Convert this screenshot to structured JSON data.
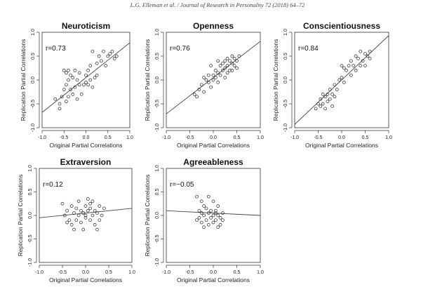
{
  "header": "L.G. Elleman et al. / Journal of Research in Personality 72 (2018) 64–72",
  "chart_data": [
    {
      "type": "scatter",
      "title": "Neuroticism",
      "xlabel": "Original Partial Correlations",
      "ylabel": "Replication Partial Correlations",
      "annotation": "r=0.73",
      "xlim": [
        -1.0,
        1.0
      ],
      "ylim": [
        -1.0,
        1.0
      ],
      "xticks": [
        "-1.0",
        "-0.5",
        "0.0",
        "0.5",
        "1.0"
      ],
      "yticks": [
        "-1.0",
        "-0.5",
        "0.0",
        "0.5",
        "1.0"
      ],
      "fit": {
        "slope": 0.73,
        "intercept": 0.05
      },
      "points": [
        [
          -0.7,
          -0.4
        ],
        [
          -0.6,
          -0.6
        ],
        [
          -0.55,
          -0.35
        ],
        [
          -0.5,
          -0.2
        ],
        [
          -0.5,
          0.2
        ],
        [
          -0.45,
          -0.1
        ],
        [
          -0.45,
          0.15
        ],
        [
          -0.4,
          -0.35
        ],
        [
          -0.4,
          0.0
        ],
        [
          -0.4,
          0.2
        ],
        [
          -0.35,
          -0.2
        ],
        [
          -0.35,
          0.1
        ],
        [
          -0.3,
          -0.3
        ],
        [
          -0.3,
          0.05
        ],
        [
          -0.25,
          -0.15
        ],
        [
          -0.25,
          0.2
        ],
        [
          -0.2,
          -0.4
        ],
        [
          -0.2,
          0.0
        ],
        [
          -0.15,
          -0.1
        ],
        [
          -0.15,
          0.15
        ],
        [
          -0.1,
          -0.3
        ],
        [
          -0.05,
          -0.1
        ],
        [
          0.0,
          -0.05
        ],
        [
          0.0,
          0.1
        ],
        [
          0.05,
          -0.1
        ],
        [
          0.05,
          0.2
        ],
        [
          0.1,
          0.0
        ],
        [
          0.1,
          0.3
        ],
        [
          0.15,
          -0.15
        ],
        [
          0.2,
          0.05
        ],
        [
          0.25,
          0.1
        ],
        [
          0.3,
          0.5
        ],
        [
          0.35,
          0.4
        ],
        [
          0.4,
          0.6
        ],
        [
          0.45,
          0.3
        ],
        [
          0.5,
          0.5
        ],
        [
          0.55,
          0.55
        ],
        [
          0.6,
          0.6
        ],
        [
          0.65,
          0.45
        ],
        [
          0.7,
          0.5
        ],
        [
          -0.6,
          -0.5
        ],
        [
          -0.45,
          -0.45
        ],
        [
          0.15,
          0.6
        ],
        [
          0.25,
          0.35
        ]
      ]
    },
    {
      "type": "scatter",
      "title": "Openness",
      "xlabel": "Original Partial Correlations",
      "ylabel": "Replication Partial Correlations",
      "annotation": "r=0.76",
      "xlim": [
        -1.0,
        1.0
      ],
      "ylim": [
        -1.0,
        1.0
      ],
      "xticks": [
        "-1.0",
        "-0.5",
        "0.0",
        "0.5",
        "1.0"
      ],
      "yticks": [
        "-1.0",
        "-0.5",
        "0.0",
        "0.5",
        "1.0"
      ],
      "fit": {
        "slope": 0.76,
        "intercept": 0.05
      },
      "points": [
        [
          -0.4,
          -0.3
        ],
        [
          -0.35,
          -0.35
        ],
        [
          -0.3,
          -0.2
        ],
        [
          -0.25,
          -0.1
        ],
        [
          -0.2,
          -0.25
        ],
        [
          -0.15,
          0.0
        ],
        [
          -0.1,
          -0.05
        ],
        [
          -0.1,
          0.1
        ],
        [
          -0.05,
          -0.15
        ],
        [
          0.0,
          0.0
        ],
        [
          0.0,
          0.1
        ],
        [
          0.05,
          0.05
        ],
        [
          0.05,
          0.2
        ],
        [
          0.1,
          -0.05
        ],
        [
          0.1,
          0.15
        ],
        [
          0.15,
          0.1
        ],
        [
          0.15,
          0.3
        ],
        [
          0.2,
          0.2
        ],
        [
          0.2,
          0.35
        ],
        [
          0.25,
          0.25
        ],
        [
          0.25,
          0.4
        ],
        [
          0.3,
          0.3
        ],
        [
          0.3,
          0.45
        ],
        [
          0.35,
          0.2
        ],
        [
          0.35,
          0.4
        ],
        [
          0.4,
          0.35
        ],
        [
          0.4,
          0.5
        ],
        [
          0.45,
          0.3
        ],
        [
          0.45,
          0.45
        ],
        [
          0.5,
          0.4
        ],
        [
          0.5,
          0.25
        ],
        [
          0.55,
          0.5
        ],
        [
          -0.2,
          0.05
        ],
        [
          -0.05,
          0.3
        ],
        [
          0.1,
          0.4
        ],
        [
          0.25,
          0.05
        ],
        [
          0.3,
          0.15
        ],
        [
          0.4,
          0.2
        ]
      ]
    },
    {
      "type": "scatter",
      "title": "Conscientiousness",
      "xlabel": "Original Partial Correlations",
      "ylabel": "Replication Partial Correlations",
      "annotation": "r=0.84",
      "xlim": [
        -1.0,
        1.0
      ],
      "ylim": [
        -1.0,
        1.0
      ],
      "xticks": [
        "-1.0",
        "-0.5",
        "0.0",
        "0.5",
        "1.0"
      ],
      "yticks": [
        "-1.0",
        "-0.5",
        "0.0",
        "0.5",
        "1.0"
      ],
      "fit": {
        "slope": 0.93,
        "intercept": 0.0
      },
      "points": [
        [
          -0.55,
          -0.6
        ],
        [
          -0.5,
          -0.5
        ],
        [
          -0.45,
          -0.55
        ],
        [
          -0.45,
          -0.4
        ],
        [
          -0.4,
          -0.5
        ],
        [
          -0.35,
          -0.35
        ],
        [
          -0.35,
          -0.6
        ],
        [
          -0.3,
          -0.45
        ],
        [
          -0.3,
          -0.3
        ],
        [
          -0.25,
          -0.4
        ],
        [
          -0.25,
          -0.2
        ],
        [
          -0.2,
          -0.3
        ],
        [
          -0.2,
          -0.55
        ],
        [
          -0.15,
          -0.1
        ],
        [
          -0.1,
          -0.2
        ],
        [
          -0.05,
          0.0
        ],
        [
          0.0,
          0.05
        ],
        [
          0.0,
          0.3
        ],
        [
          0.05,
          -0.05
        ],
        [
          0.05,
          0.25
        ],
        [
          0.1,
          0.2
        ],
        [
          0.15,
          0.3
        ],
        [
          0.2,
          0.4
        ],
        [
          0.25,
          0.3
        ],
        [
          0.3,
          0.5
        ],
        [
          0.35,
          0.45
        ],
        [
          0.4,
          0.6
        ],
        [
          0.45,
          0.4
        ],
        [
          0.5,
          0.55
        ],
        [
          0.55,
          0.5
        ],
        [
          0.6,
          0.6
        ],
        [
          0.3,
          0.2
        ],
        [
          0.4,
          0.3
        ],
        [
          0.5,
          0.3
        ],
        [
          -0.4,
          -0.3
        ],
        [
          -0.15,
          -0.35
        ],
        [
          0.2,
          0.1
        ],
        [
          0.6,
          0.45
        ]
      ]
    },
    {
      "type": "scatter",
      "title": "Extraversion",
      "xlabel": "Original Partial Correlations",
      "ylabel": "Replication Partial Correlations",
      "annotation": "r=0.12",
      "xlim": [
        -1.0,
        1.0
      ],
      "ylim": [
        -1.0,
        1.0
      ],
      "xticks": [
        "-1.0",
        "-0.5",
        "0.0",
        "0.5",
        "1.0"
      ],
      "yticks": [
        "-1.0",
        "-0.5",
        "0.0",
        "0.5",
        "1.0"
      ],
      "fit": {
        "slope": 0.1,
        "intercept": 0.05
      },
      "points": [
        [
          -0.5,
          0.25
        ],
        [
          -0.45,
          0.0
        ],
        [
          -0.4,
          0.1
        ],
        [
          -0.35,
          -0.1
        ],
        [
          -0.3,
          0.2
        ],
        [
          -0.3,
          -0.2
        ],
        [
          -0.25,
          0.05
        ],
        [
          -0.2,
          0.15
        ],
        [
          -0.2,
          -0.1
        ],
        [
          -0.15,
          0.0
        ],
        [
          -0.15,
          0.3
        ],
        [
          -0.1,
          -0.15
        ],
        [
          -0.1,
          0.1
        ],
        [
          -0.05,
          0.05
        ],
        [
          -0.05,
          -0.3
        ],
        [
          0.0,
          0.2
        ],
        [
          0.0,
          -0.05
        ],
        [
          0.05,
          0.1
        ],
        [
          0.05,
          0.35
        ],
        [
          0.1,
          -0.1
        ],
        [
          0.1,
          0.15
        ],
        [
          0.15,
          0.0
        ],
        [
          0.15,
          0.3
        ],
        [
          0.2,
          -0.2
        ],
        [
          0.2,
          0.1
        ],
        [
          0.25,
          0.05
        ],
        [
          0.3,
          0.2
        ],
        [
          0.3,
          -0.1
        ],
        [
          0.35,
          0.0
        ],
        [
          0.4,
          0.15
        ],
        [
          -0.25,
          -0.3
        ],
        [
          -0.4,
          -0.15
        ],
        [
          0.0,
          0.0
        ],
        [
          0.1,
          0.25
        ],
        [
          0.25,
          -0.3
        ]
      ]
    },
    {
      "type": "scatter",
      "title": "Agreeableness",
      "xlabel": "Original Partial Correlations",
      "ylabel": "Replication Partial Correlations",
      "annotation": "r=−0.05",
      "xlim": [
        -1.0,
        1.0
      ],
      "ylim": [
        -1.0,
        1.0
      ],
      "xticks": [
        "-1.0",
        "-0.5",
        "0.0",
        "0.5",
        "1.0"
      ],
      "yticks": [
        "-1.0",
        "-0.5",
        "0.0",
        "0.5",
        "1.0"
      ],
      "fit": {
        "slope": -0.05,
        "intercept": 0.05
      },
      "points": [
        [
          -0.35,
          0.4
        ],
        [
          -0.3,
          0.1
        ],
        [
          -0.3,
          -0.05
        ],
        [
          -0.25,
          0.3
        ],
        [
          -0.25,
          -0.15
        ],
        [
          -0.2,
          0.0
        ],
        [
          -0.2,
          0.2
        ],
        [
          -0.15,
          -0.1
        ],
        [
          -0.15,
          0.15
        ],
        [
          -0.1,
          0.05
        ],
        [
          -0.1,
          -0.2
        ],
        [
          -0.05,
          0.1
        ],
        [
          -0.05,
          -0.05
        ],
        [
          0.0,
          0.0
        ],
        [
          0.0,
          -0.15
        ],
        [
          0.05,
          0.1
        ],
        [
          0.05,
          -0.1
        ],
        [
          0.1,
          0.0
        ],
        [
          0.1,
          0.2
        ],
        [
          0.15,
          -0.05
        ],
        [
          0.15,
          -0.2
        ],
        [
          0.2,
          0.05
        ],
        [
          -0.35,
          -0.1
        ],
        [
          -0.1,
          0.4
        ],
        [
          0.0,
          0.3
        ],
        [
          -0.25,
          0.05
        ],
        [
          0.05,
          0.05
        ],
        [
          0.1,
          -0.25
        ],
        [
          -0.2,
          -0.25
        ],
        [
          0.2,
          -0.1
        ]
      ]
    }
  ]
}
